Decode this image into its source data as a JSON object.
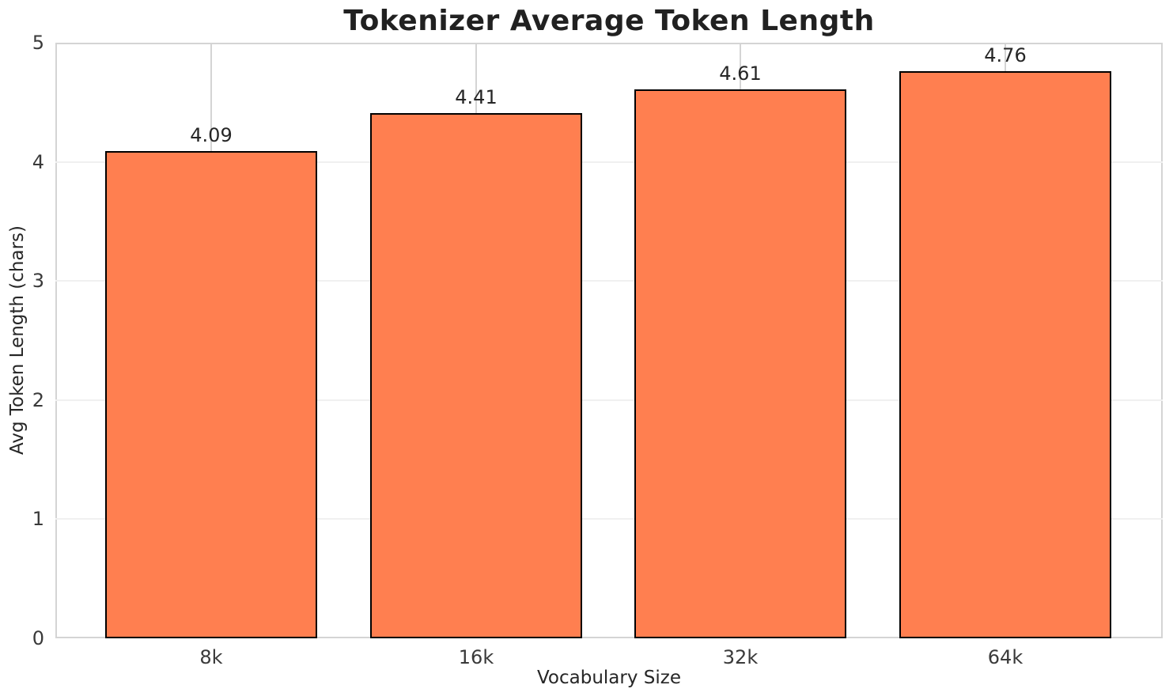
{
  "chart_data": {
    "type": "bar",
    "title": "Tokenizer Average Token Length",
    "xlabel": "Vocabulary Size",
    "ylabel": "Avg Token Length (chars)",
    "categories": [
      "8k",
      "16k",
      "32k",
      "64k"
    ],
    "values": [
      4.09,
      4.41,
      4.61,
      4.76
    ],
    "value_labels": [
      "4.09",
      "4.41",
      "4.61",
      "4.76"
    ],
    "ylim": [
      0,
      5
    ],
    "yticks": [
      0,
      1,
      2,
      3,
      4,
      5
    ],
    "ytick_labels": [
      "0",
      "1",
      "2",
      "3",
      "4",
      "5"
    ],
    "legend": "none",
    "grid": "on",
    "colors": {
      "bar_fill": "#FF7F50",
      "bar_edge": "#000000",
      "horizontal_grid": "#f0f0f0",
      "vertical_grid": "#d4d4d4",
      "spine": "#d4d4d4",
      "text": "#262626",
      "background": "#ffffff"
    }
  }
}
